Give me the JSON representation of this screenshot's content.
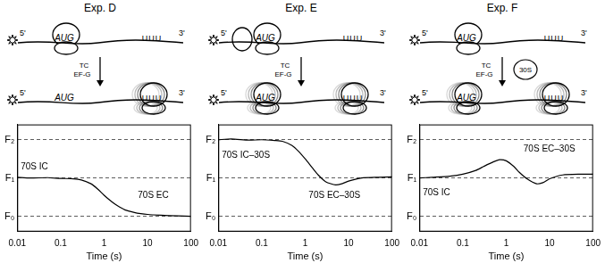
{
  "chart_data": [
    {
      "type": "line",
      "title": "Exp. D",
      "schematic": {
        "five_prime": "5'",
        "three_prime": "3'",
        "start_codon": "AUG",
        "poly_u": "UUU",
        "factors": [
          "TC",
          "EF-G"
        ]
      },
      "x": [
        0.01,
        0.02,
        0.05,
        0.1,
        0.2,
        0.3,
        0.5,
        0.7,
        1,
        1.5,
        2,
        3,
        5,
        7,
        10,
        20,
        50,
        100
      ],
      "values": [
        1.02,
        1.0,
        1.01,
        0.99,
        0.98,
        0.95,
        0.85,
        0.72,
        0.55,
        0.38,
        0.28,
        0.17,
        0.1,
        0.07,
        0.05,
        0.03,
        0.01,
        0.0
      ],
      "color": "#000000",
      "x_label": "Time (s)",
      "log": "x",
      "grid": true,
      "xlim": [
        0.01,
        100
      ],
      "xticks": [
        0.01,
        0.1,
        1,
        10,
        100
      ],
      "ylim": [
        -0.4,
        2.4
      ],
      "yticks": [
        {
          "value": 0,
          "label": "F₀"
        },
        {
          "value": 1,
          "label": "F₁"
        },
        {
          "value": 2,
          "label": "F₂"
        }
      ],
      "annotations": [
        {
          "text": "70S IC",
          "x": 0.012,
          "y": 1.3
        },
        {
          "text": "70S EC",
          "x": 6,
          "y": 0.55
        }
      ]
    },
    {
      "type": "line",
      "title": "Exp. E",
      "schematic": {
        "five_prime": "5'",
        "three_prime": "3'",
        "start_codon": "AUG",
        "poly_u": "UUU",
        "factors": [
          "TC",
          "EF-G"
        ]
      },
      "x": [
        0.01,
        0.02,
        0.05,
        0.1,
        0.2,
        0.3,
        0.5,
        0.7,
        1,
        1.5,
        2,
        3,
        5,
        7,
        10,
        20,
        50,
        100
      ],
      "values": [
        2.0,
        2.02,
        1.99,
        2.0,
        1.98,
        1.96,
        1.85,
        1.7,
        1.5,
        1.25,
        1.08,
        0.9,
        0.82,
        0.85,
        0.92,
        1.0,
        1.02,
        1.03
      ],
      "color": "#000000",
      "x_label": "Time (s)",
      "log": "x",
      "grid": true,
      "xlim": [
        0.01,
        100
      ],
      "xticks": [
        0.01,
        0.1,
        1,
        10,
        100
      ],
      "ylim": [
        -0.4,
        2.4
      ],
      "yticks": [
        {
          "value": 0,
          "label": "F₀"
        },
        {
          "value": 1,
          "label": "F₁"
        },
        {
          "value": 2,
          "label": "F₂"
        }
      ],
      "annotations": [
        {
          "text": "70S IC–30S",
          "x": 0.012,
          "y": 1.6
        },
        {
          "text": "70S EC–30S",
          "x": 1.2,
          "y": 0.55
        }
      ]
    },
    {
      "type": "line",
      "title": "Exp. F",
      "schematic": {
        "five_prime": "5'",
        "three_prime": "3'",
        "start_codon": "AUG",
        "poly_u": "UUU",
        "factors": [
          "TC",
          "EF-G"
        ],
        "added": "30S"
      },
      "x": [
        0.01,
        0.02,
        0.05,
        0.1,
        0.2,
        0.3,
        0.5,
        0.7,
        1,
        1.5,
        2,
        3,
        5,
        7,
        10,
        20,
        50,
        100
      ],
      "values": [
        1.0,
        1.02,
        1.05,
        1.1,
        1.2,
        1.3,
        1.42,
        1.48,
        1.45,
        1.3,
        1.15,
        0.98,
        0.85,
        0.88,
        0.98,
        1.08,
        1.1,
        1.1
      ],
      "color": "#000000",
      "x_label": "Time (s)",
      "log": "x",
      "grid": true,
      "xlim": [
        0.01,
        100
      ],
      "xticks": [
        0.01,
        0.1,
        1,
        10,
        100
      ],
      "ylim": [
        -0.4,
        2.4
      ],
      "yticks": [
        {
          "value": 0,
          "label": "F₀"
        },
        {
          "value": 1,
          "label": "F₁"
        },
        {
          "value": 2,
          "label": "F₂"
        }
      ],
      "annotations": [
        {
          "text": "70S IC",
          "x": 0.012,
          "y": 0.62
        },
        {
          "text": "70S EC–30S",
          "x": 2.5,
          "y": 1.75
        }
      ]
    }
  ]
}
